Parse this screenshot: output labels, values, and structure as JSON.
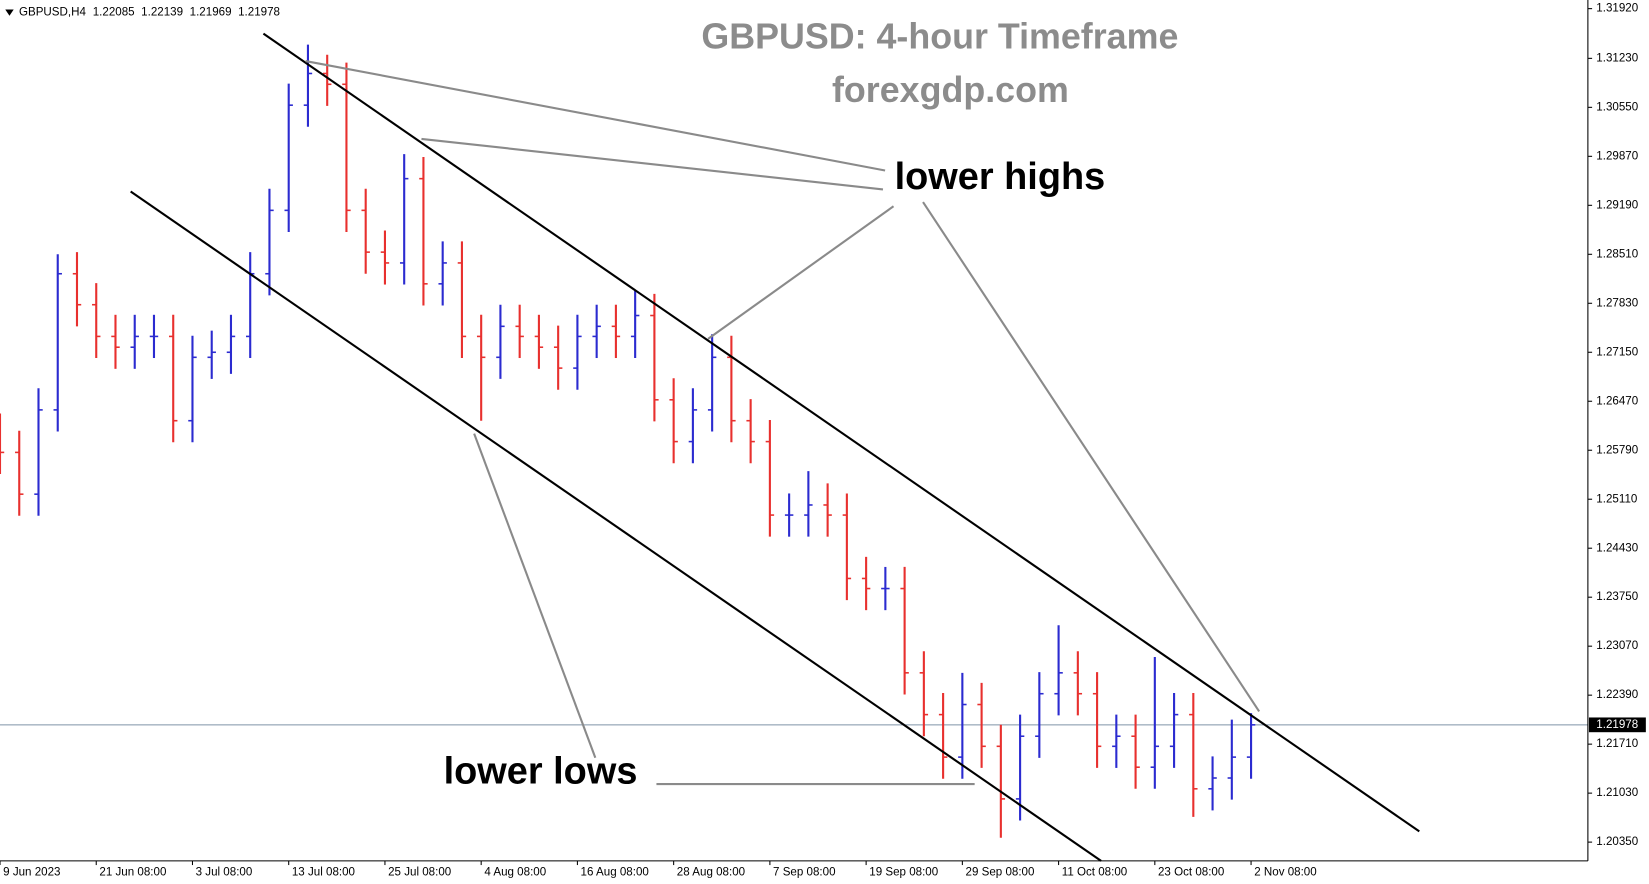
{
  "chart_data": {
    "type": "ohlc",
    "header": {
      "symbol": "GBPUSD,H4",
      "quote": [
        "1.22085",
        "1.22139",
        "1.21969",
        "1.21978"
      ]
    },
    "title": "GBPUSD: 4-hour Timeframe",
    "subtitle": "forexgdp.com",
    "annotations": {
      "highs": "lower highs",
      "lows": "lower lows"
    },
    "up_color": "#2b2bd0",
    "down_color": "#e8302e",
    "current_price": 1.21978,
    "xlim": [
      0,
      165
    ],
    "xticks": [
      {
        "value": 0,
        "label": "9 Jun 2023"
      },
      {
        "value": 10,
        "label": "21 Jun 08:00"
      },
      {
        "value": 20,
        "label": "3 Jul 08:00"
      },
      {
        "value": 30,
        "label": "13 Jul 08:00"
      },
      {
        "value": 40,
        "label": "25 Jul 08:00"
      },
      {
        "value": 50,
        "label": "4 Aug 08:00"
      },
      {
        "value": 60,
        "label": "16 Aug 08:00"
      },
      {
        "value": 70,
        "label": "28 Aug 08:00"
      },
      {
        "value": 80,
        "label": "7 Sep 08:00"
      },
      {
        "value": 90,
        "label": "19 Sep 08:00"
      },
      {
        "value": 100,
        "label": "29 Sep 08:00"
      },
      {
        "value": 110,
        "label": "11 Oct 08:00"
      },
      {
        "value": 120,
        "label": "23 Oct 08:00"
      },
      {
        "value": 130,
        "label": "2 Nov 08:00"
      }
    ],
    "ylim": [
      1.2009,
      1.3204
    ],
    "yticks": [
      {
        "value": 1.3192,
        "label": "1.31920"
      },
      {
        "value": 1.3123,
        "label": "1.31230"
      },
      {
        "value": 1.3055,
        "label": "1.30550"
      },
      {
        "value": 1.2987,
        "label": "1.29870"
      },
      {
        "value": 1.2919,
        "label": "1.29190"
      },
      {
        "value": 1.2851,
        "label": "1.28510"
      },
      {
        "value": 1.2783,
        "label": "1.27830"
      },
      {
        "value": 1.2715,
        "label": "1.27150"
      },
      {
        "value": 1.2647,
        "label": "1.26470"
      },
      {
        "value": 1.2579,
        "label": "1.25790"
      },
      {
        "value": 1.2511,
        "label": "1.25110"
      },
      {
        "value": 1.2443,
        "label": "1.24430"
      },
      {
        "value": 1.2375,
        "label": "1.23750"
      },
      {
        "value": 1.2307,
        "label": "1.23070"
      },
      {
        "value": 1.2239,
        "label": "1.22390"
      },
      {
        "value": 1.2171,
        "label": "1.21710"
      },
      {
        "value": 1.2103,
        "label": "1.21030"
      },
      {
        "value": 1.2035,
        "label": "1.20350"
      }
    ],
    "x": [
      0,
      2,
      4,
      6,
      8,
      10,
      12,
      14,
      16,
      18,
      20,
      22,
      24,
      26,
      28,
      30,
      32,
      34,
      36,
      38,
      40,
      42,
      44,
      46,
      48,
      50,
      52,
      54,
      56,
      58,
      60,
      62,
      64,
      66,
      68,
      70,
      72,
      74,
      76,
      78,
      80,
      82,
      84,
      86,
      88,
      90,
      92,
      94,
      96,
      98,
      100,
      102,
      104,
      106,
      108,
      110,
      112,
      114,
      116,
      118,
      120,
      122,
      124,
      126,
      128,
      130
    ],
    "open": [
      1.26,
      1.2576,
      1.2518,
      1.2635,
      1.2824,
      1.2781,
      1.2737,
      1.2722,
      1.2737,
      1.2737,
      1.262,
      1.2708,
      1.2715,
      1.2737,
      1.2824,
      1.2912,
      1.3058,
      1.3102,
      1.3087,
      1.2912,
      1.2854,
      1.2839,
      1.2956,
      1.281,
      1.2839,
      1.2737,
      1.2708,
      1.2751,
      1.2737,
      1.2722,
      1.2693,
      1.2737,
      1.2751,
      1.2737,
      1.2766,
      1.2649,
      1.2591,
      1.2635,
      1.2708,
      1.262,
      1.2591,
      1.2489,
      1.2489,
      1.2503,
      1.2489,
      1.2401,
      1.2387,
      1.2387,
      1.227,
      1.2212,
      1.2153,
      1.2226,
      1.2168,
      1.2095,
      1.2182,
      1.2241,
      1.227,
      1.2241,
      1.2168,
      1.2182,
      1.2139,
      1.2168,
      1.2212,
      1.2109,
      1.2124,
      1.2153
    ],
    "high": [
      1.263,
      1.2606,
      1.2665,
      1.2851,
      1.2854,
      1.2811,
      1.2767,
      1.2767,
      1.2767,
      1.2767,
      1.2738,
      1.2745,
      1.2767,
      1.2854,
      1.2942,
      1.3088,
      1.3142,
      1.3128,
      1.3117,
      1.2942,
      1.2884,
      1.299,
      1.2986,
      1.2869,
      1.2869,
      1.2767,
      1.2781,
      1.2781,
      1.2767,
      1.2752,
      1.2767,
      1.2781,
      1.2781,
      1.28,
      1.2796,
      1.2679,
      1.2665,
      1.274,
      1.2738,
      1.265,
      1.2621,
      1.2519,
      1.255,
      1.2533,
      1.2519,
      1.2431,
      1.2417,
      1.2417,
      1.23,
      1.2242,
      1.227,
      1.2256,
      1.2198,
      1.2212,
      1.2271,
      1.2336,
      1.23,
      1.2271,
      1.2212,
      1.2212,
      1.2292,
      1.2242,
      1.2242,
      1.2154,
      1.2205,
      1.2214
    ],
    "low": [
      1.2546,
      1.2488,
      1.2488,
      1.2605,
      1.2751,
      1.2707,
      1.2692,
      1.2692,
      1.2707,
      1.259,
      1.259,
      1.2678,
      1.2685,
      1.2707,
      1.2794,
      1.2882,
      1.3028,
      1.3057,
      1.2882,
      1.2824,
      1.2809,
      1.2809,
      1.278,
      1.278,
      1.2707,
      1.262,
      1.2678,
      1.2707,
      1.2692,
      1.2663,
      1.2663,
      1.2707,
      1.2707,
      1.2707,
      1.2619,
      1.2561,
      1.2561,
      1.2605,
      1.259,
      1.2561,
      1.2459,
      1.2459,
      1.2459,
      1.2459,
      1.2371,
      1.2357,
      1.2357,
      1.224,
      1.2182,
      1.2123,
      1.2123,
      1.2138,
      1.2041,
      1.2065,
      1.2152,
      1.2211,
      1.2211,
      1.2138,
      1.2138,
      1.2109,
      1.2109,
      1.2138,
      1.207,
      1.2079,
      1.2094,
      1.2123
    ],
    "close": [
      1.2576,
      1.2518,
      1.2635,
      1.2824,
      1.2781,
      1.2737,
      1.2722,
      1.2737,
      1.2737,
      1.262,
      1.2708,
      1.2715,
      1.2737,
      1.2824,
      1.2912,
      1.3058,
      1.3102,
      1.3087,
      1.2912,
      1.2854,
      1.2839,
      1.2956,
      1.281,
      1.2839,
      1.2737,
      1.2708,
      1.2751,
      1.2737,
      1.2722,
      1.2693,
      1.2737,
      1.2751,
      1.2737,
      1.2766,
      1.2649,
      1.2591,
      1.2635,
      1.2708,
      1.262,
      1.2591,
      1.2489,
      1.2489,
      1.2503,
      1.2489,
      1.2401,
      1.2387,
      1.2387,
      1.227,
      1.2212,
      1.2153,
      1.2226,
      1.2168,
      1.2095,
      1.2182,
      1.2241,
      1.227,
      1.2241,
      1.2168,
      1.2182,
      1.2139,
      1.2168,
      1.2212,
      1.2109,
      1.2124,
      1.2153,
      1.21978
    ]
  }
}
